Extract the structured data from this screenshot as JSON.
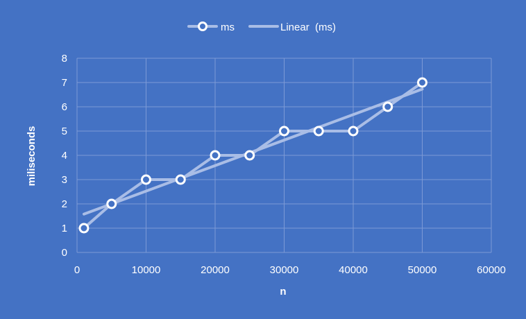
{
  "chart_data": {
    "type": "scatter",
    "title": "",
    "xlabel": "n",
    "ylabel": "miliseconds",
    "xlim": [
      0,
      60000
    ],
    "ylim": [
      0,
      8
    ],
    "x_ticks": [
      "0",
      "10000",
      "20000",
      "30000",
      "40000",
      "50000",
      "60000"
    ],
    "y_ticks": [
      "0",
      "1",
      "2",
      "3",
      "4",
      "5",
      "6",
      "7",
      "8"
    ],
    "grid": true,
    "legend_position": "top",
    "series": [
      {
        "name": "ms",
        "style": "line-with-markers",
        "x": [
          1000,
          5000,
          10000,
          15000,
          20000,
          25000,
          30000,
          35000,
          40000,
          45000,
          50000
        ],
        "y": [
          1,
          2,
          3,
          3,
          4,
          4,
          5,
          5,
          5,
          6,
          7
        ]
      },
      {
        "name": "Linear  (ms)",
        "style": "trendline",
        "x": [
          1000,
          50000
        ],
        "y": [
          1.58,
          6.73
        ]
      }
    ],
    "colors": {
      "background": "#4472c4",
      "line": "#a9bde6",
      "marker_fill": "#4472c4",
      "marker_stroke": "#ffffff",
      "grid": "#7d9ad6",
      "text": "#ffffff"
    }
  }
}
